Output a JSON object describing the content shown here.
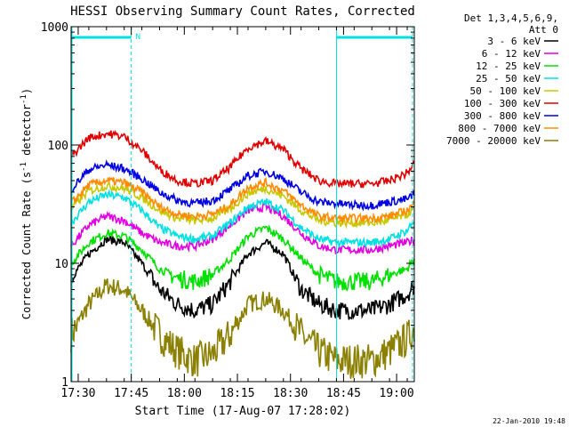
{
  "chart_data": {
    "type": "line",
    "title": "HESSI Observing Summary Count Rates, Corrected",
    "xlabel": "Start Time (17-Aug-07 17:28:02)",
    "ylabel_parts": {
      "main": "Corrected Count Rate (s",
      "sup1": "-1",
      "mid": " detector",
      "sup2": "-1",
      "end": ")"
    },
    "x_range_minutes_after_17_28": [
      0,
      97
    ],
    "xlim": [
      "17:28:02",
      "19:05:02"
    ],
    "y_scale": "log",
    "ylim": [
      1,
      1000
    ],
    "x_ticks": [
      {
        "label": "17:30",
        "minute": 2
      },
      {
        "label": "17:45",
        "minute": 17
      },
      {
        "label": "18:00",
        "minute": 32
      },
      {
        "label": "18:15",
        "minute": 47
      },
      {
        "label": "18:30",
        "minute": 62
      },
      {
        "label": "18:45",
        "minute": 77
      },
      {
        "label": "19:00",
        "minute": 92
      }
    ],
    "y_ticks": [
      {
        "label": "1",
        "value": 1
      },
      {
        "label": "10",
        "value": 10
      },
      {
        "label": "100",
        "value": 100
      },
      {
        "label": "1000",
        "value": 1000
      }
    ],
    "legend_header": [
      "Det 1,3,4,5,6,9,",
      "Att 0"
    ],
    "legend_placement": "right",
    "x_minutes": [
      0,
      5,
      10,
      15,
      20,
      25,
      30,
      35,
      40,
      45,
      50,
      55,
      60,
      65,
      70,
      75,
      80,
      85,
      90,
      95,
      97
    ],
    "series": [
      {
        "name": "3 - 6 keV",
        "color": "#000000",
        "values": [
          7.5,
          12,
          16,
          15,
          10,
          6,
          4.5,
          4,
          4.5,
          7,
          12,
          15,
          12,
          6,
          4.5,
          4,
          4,
          4,
          4.5,
          5.5,
          6.5
        ]
      },
      {
        "name": "6 - 12 keV",
        "color": "#e000e0",
        "values": [
          14,
          21,
          25,
          23,
          18,
          15,
          14,
          14,
          16,
          21,
          28,
          30,
          25,
          18,
          14,
          13,
          13,
          13,
          14,
          15,
          16
        ]
      },
      {
        "name": "12 - 25 keV",
        "color": "#00e000",
        "values": [
          10,
          15,
          18,
          17,
          13,
          9,
          7.5,
          7,
          8,
          11,
          17,
          20,
          16,
          11,
          8,
          7,
          7,
          7,
          8,
          9,
          11
        ]
      },
      {
        "name": "25 - 50 keV",
        "color": "#00e0e0",
        "values": [
          22,
          33,
          38,
          36,
          28,
          20,
          17,
          16,
          17,
          22,
          30,
          33,
          28,
          20,
          16,
          15,
          15,
          15,
          16,
          19,
          23
        ]
      },
      {
        "name": "50 - 100 keV",
        "color": "#c8c800",
        "values": [
          29,
          41,
          45,
          43,
          36,
          28,
          24,
          23,
          24,
          29,
          39,
          43,
          37,
          28,
          23,
          22,
          22,
          22,
          23,
          26,
          29
        ]
      },
      {
        "name": "100 - 300 keV",
        "color": "#e00000",
        "values": [
          80,
          115,
          125,
          118,
          90,
          62,
          50,
          47,
          50,
          65,
          95,
          108,
          92,
          63,
          50,
          47,
          47,
          47,
          50,
          58,
          70
        ]
      },
      {
        "name": "300 - 800 keV",
        "color": "#0000e0",
        "values": [
          42,
          62,
          68,
          63,
          52,
          40,
          34,
          32,
          34,
          42,
          55,
          60,
          52,
          40,
          33,
          32,
          31,
          31,
          33,
          35,
          38
        ]
      },
      {
        "name": "800 - 7000 keV",
        "color": "#ff8c00",
        "values": [
          32,
          46,
          50,
          48,
          40,
          30,
          26,
          25,
          26,
          31,
          44,
          48,
          41,
          31,
          25,
          24,
          24,
          24,
          25,
          28,
          32
        ]
      },
      {
        "name": "7000 - 20000 keV",
        "color": "#8b8000",
        "values": [
          2.5,
          4.5,
          6.5,
          6,
          4,
          2.5,
          1.8,
          1.5,
          1.7,
          2.5,
          4.5,
          5,
          4,
          2.5,
          1.8,
          1.5,
          1.5,
          1.5,
          1.8,
          2.3,
          2.8
        ]
      }
    ],
    "attenuator_segments": [
      {
        "start_minute": 0,
        "end_minute": 17,
        "label": "N"
      },
      {
        "start_minute": 75,
        "end_minute": 96.5,
        "label": ""
      }
    ],
    "night_markers_minute": [
      17,
      96.5
    ],
    "day_start_minute": 75,
    "annotation_color": "#00e0e0"
  },
  "footer_timestamp": "22-Jan-2010 19:48"
}
